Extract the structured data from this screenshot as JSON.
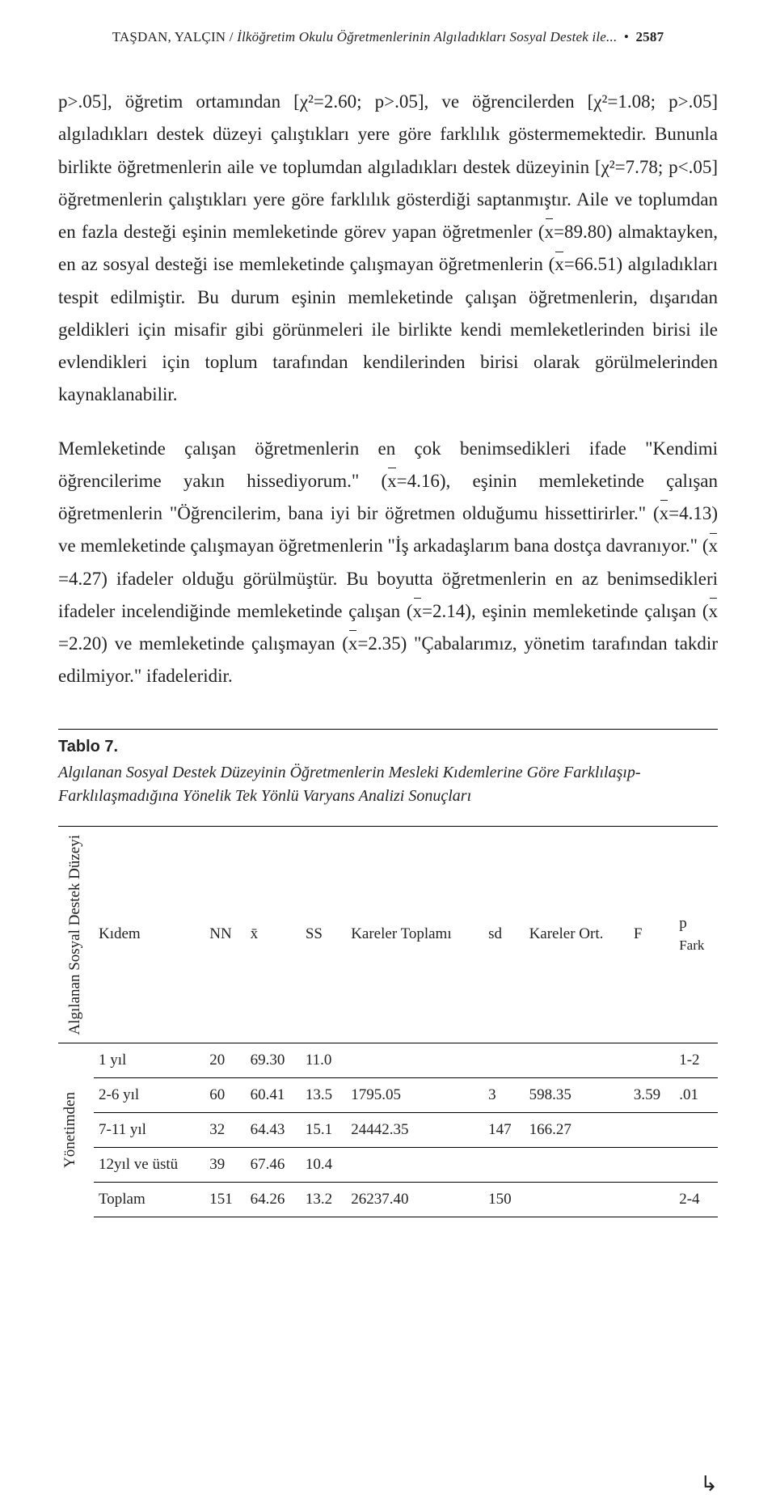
{
  "header": {
    "authors": "TAŞDAN, YALÇIN",
    "separator": " / ",
    "title_fragment": "İlköğretim Okulu Öğretmenlerinin Algıladıkları Sosyal Destek ile...",
    "bullet": "•",
    "page_number": "2587"
  },
  "paragraphs": {
    "p1_pre": "p>.05], öğretim ortamından [χ²=2.60; p>.05], ve öğrencilerden [χ²=1.08; p>.05] algıladıkları destek düzeyi çalıştıkları yere göre farklılık göstermemektedir. Bununla birlikte öğretmenlerin aile ve toplumdan algıladıkları destek düzeyinin [χ²=7.78; p<.05] öğretmenlerin çalıştıkları yere göre farklılık gösterdiği saptanmıştır. Aile ve toplumdan en fazla desteği eşinin memleketinde görev yapan öğretmenler (",
    "p1_xbar1": "x",
    "p1_mid1": "=89.80) almaktayken, en az sosyal desteği ise memleketinde çalışmayan öğretmenlerin (",
    "p1_xbar2": "x",
    "p1_mid2": "=66.51) algıladıkları tespit edilmiştir. Bu durum eşinin memleketinde çalışan öğretmenlerin, dışarıdan geldikleri için misafir gibi görünmeleri ile birlikte kendi memleketlerinden birisi ile evlendikleri için toplum tarafından kendilerinden birisi olarak görülmelerinden kaynaklanabilir.",
    "p2_pre": "Memleketinde çalışan öğretmenlerin en çok benimsedikleri ifade \"Kendimi öğrencilerime yakın hissediyorum.\" (",
    "p2_x1": "x",
    "p2_m1": "=4.16), eşinin memleketinde çalışan öğretmenlerin \"Öğrencilerim, bana iyi bir öğretmen olduğumu hissettirirler.\" (",
    "p2_x2": "x",
    "p2_m2": "=4.13) ve memleketinde çalışmayan öğretmenlerin \"İş arkadaşlarım bana dostça davranıyor.\" (",
    "p2_x3": "x",
    "p2_m3": "=4.27) ifadeler olduğu görülmüştür. Bu boyutta öğretmenlerin en az benimsedikleri ifadeler incelendiğinde memleketinde çalışan (",
    "p2_x4": "x",
    "p2_m4": "=2.14),  eşinin memleketinde çalışan (",
    "p2_x5": "x",
    "p2_m5": "=2.20) ve memleketinde çalışmayan (",
    "p2_x6": "x",
    "p2_m6": "=2.35) \"Çabalarımız, yönetim tarafından takdir edilmiyor.\" ifadeleridir."
  },
  "table": {
    "label": "Tablo 7.",
    "caption": "Algılanan Sosyal Destek Düzeyinin Öğretmenlerin Mesleki Kıdemlerine Göre Farklılaşıp-Farklılaşmadığına Yönelik Tek Yönlü Varyans Analizi Sonuçları",
    "col_vertical1": "Algılanan Sosyal Destek Düzeyi",
    "headers": {
      "kidem": "Kıdem",
      "nn": "NN",
      "xbar": "x̄",
      "ss": "SS",
      "kareler_toplami": "Kareler Toplamı",
      "sd": "sd",
      "kareler_ort": "Kareler Ort.",
      "f": "F",
      "p": "p",
      "fark": "Fark"
    },
    "vertical2": "Yönetimden",
    "rows": [
      {
        "kidem": "1 yıl",
        "nn": "20",
        "xbar": "69.30",
        "ss": "11.0",
        "kt": "",
        "sd": "",
        "ko": "",
        "f": "",
        "p": "",
        "fark": "1-2"
      },
      {
        "kidem": "2-6 yıl",
        "nn": "60",
        "xbar": "60.41",
        "ss": "13.5",
        "kt": "1795.05",
        "sd": "3",
        "ko": "598.35",
        "f": "3.59",
        "p": ".01",
        "fark": ""
      },
      {
        "kidem": "7-11 yıl",
        "nn": "32",
        "xbar": "64.43",
        "ss": "15.1",
        "kt": "24442.35",
        "sd": "147",
        "ko": "166.27",
        "f": "",
        "p": "",
        "fark": ""
      },
      {
        "kidem": "12yıl ve üstü",
        "nn": "39",
        "xbar": "67.46",
        "ss": "10.4",
        "kt": "",
        "sd": "",
        "ko": "",
        "f": "",
        "p": "",
        "fark": ""
      },
      {
        "kidem": "Toplam",
        "nn": "151",
        "xbar": "64.26",
        "ss": "13.2",
        "kt": "26237.40",
        "sd": "150",
        "ko": "",
        "f": "",
        "p": "",
        "fark": "2-4"
      }
    ]
  },
  "corner": "↳"
}
